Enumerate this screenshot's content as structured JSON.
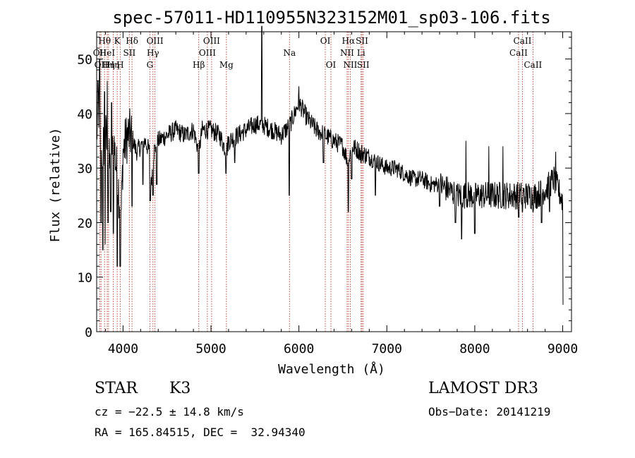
{
  "chart_data": {
    "type": "line",
    "title": "spec-57011-HD110955N323152M01_sp03-106.fits",
    "xlabel": "Wavelength (Å)",
    "ylabel": "Flux (relative)",
    "xlim": [
      3700,
      9100
    ],
    "ylim": [
      0,
      55
    ],
    "xticks": [
      4000,
      5000,
      6000,
      7000,
      8000,
      9000
    ],
    "yticks": [
      0,
      10,
      20,
      30,
      40,
      50
    ],
    "grid": false,
    "series": [
      {
        "name": "spectrum",
        "anchors": [
          [
            3700,
            36
          ],
          [
            3720,
            42
          ],
          [
            3750,
            32
          ],
          [
            3800,
            36
          ],
          [
            3850,
            30
          ],
          [
            3900,
            34
          ],
          [
            3950,
            26
          ],
          [
            3980,
            22
          ],
          [
            4000,
            33
          ],
          [
            4050,
            36
          ],
          [
            4100,
            36
          ],
          [
            4150,
            33
          ],
          [
            4200,
            34
          ],
          [
            4250,
            35
          ],
          [
            4300,
            33
          ],
          [
            4320,
            27
          ],
          [
            4350,
            33
          ],
          [
            4400,
            35
          ],
          [
            4500,
            36
          ],
          [
            4600,
            37
          ],
          [
            4700,
            36
          ],
          [
            4800,
            37
          ],
          [
            4861,
            33
          ],
          [
            4900,
            37
          ],
          [
            5000,
            37
          ],
          [
            5100,
            36
          ],
          [
            5175,
            33
          ],
          [
            5200,
            35
          ],
          [
            5300,
            36
          ],
          [
            5400,
            37
          ],
          [
            5500,
            38
          ],
          [
            5580,
            38
          ],
          [
            5700,
            37
          ],
          [
            5800,
            36
          ],
          [
            5900,
            38
          ],
          [
            6000,
            42
          ],
          [
            6100,
            39
          ],
          [
            6200,
            37
          ],
          [
            6300,
            36
          ],
          [
            6400,
            35
          ],
          [
            6500,
            34
          ],
          [
            6563,
            31
          ],
          [
            6600,
            34
          ],
          [
            6700,
            33
          ],
          [
            6800,
            32
          ],
          [
            6900,
            31
          ],
          [
            7000,
            30
          ],
          [
            7100,
            30
          ],
          [
            7200,
            29
          ],
          [
            7300,
            28
          ],
          [
            7400,
            28
          ],
          [
            7500,
            27
          ],
          [
            7600,
            27
          ],
          [
            7700,
            26
          ],
          [
            7800,
            25
          ],
          [
            7900,
            25
          ],
          [
            8000,
            25
          ],
          [
            8100,
            25
          ],
          [
            8200,
            25
          ],
          [
            8300,
            25
          ],
          [
            8400,
            25
          ],
          [
            8500,
            25
          ],
          [
            8600,
            25
          ],
          [
            8700,
            25
          ],
          [
            8800,
            26
          ],
          [
            8900,
            28
          ],
          [
            8950,
            26
          ],
          [
            9000,
            24
          ]
        ],
        "dips": [
          [
            3750,
            20
          ],
          [
            3770,
            15
          ],
          [
            3795,
            16
          ],
          [
            3830,
            20
          ],
          [
            3860,
            22
          ],
          [
            3890,
            18
          ],
          [
            3933,
            12
          ],
          [
            3968,
            12
          ],
          [
            4102,
            23
          ],
          [
            4226,
            27
          ],
          [
            4308,
            24
          ],
          [
            4340,
            25
          ],
          [
            4384,
            27
          ],
          [
            4860,
            29
          ],
          [
            5170,
            29
          ],
          [
            5270,
            31
          ],
          [
            5890,
            25
          ],
          [
            6280,
            31
          ],
          [
            6563,
            22
          ],
          [
            6600,
            28
          ],
          [
            6707,
            31
          ],
          [
            6870,
            25
          ],
          [
            7600,
            23
          ],
          [
            7780,
            20
          ],
          [
            7850,
            17
          ],
          [
            8000,
            18
          ],
          [
            8500,
            21
          ],
          [
            8542,
            22
          ],
          [
            8662,
            22
          ],
          [
            8760,
            20
          ],
          [
            8850,
            22
          ],
          [
            9005,
            5
          ]
        ],
        "spikes": [
          [
            3715,
            46
          ],
          [
            3735,
            50
          ],
          [
            3790,
            44
          ],
          [
            3820,
            46
          ],
          [
            3870,
            42
          ],
          [
            5578,
            56
          ],
          [
            6000,
            45
          ],
          [
            7900,
            35
          ],
          [
            8160,
            34
          ],
          [
            8320,
            34
          ],
          [
            8920,
            33
          ]
        ]
      }
    ],
    "lines": [
      {
        "x": 3735,
        "label": "OII",
        "row": 2
      },
      {
        "x": 3750,
        "label": "OII",
        "row": 3
      },
      {
        "x": 3790,
        "label": "Hθ",
        "row": 1
      },
      {
        "x": 3820,
        "label": "HeI",
        "row": 2
      },
      {
        "x": 3835,
        "label": "Hη",
        "row": 3
      },
      {
        "x": 3889,
        "label": "Hη",
        "row": 3
      },
      {
        "x": 3934,
        "label": "K",
        "row": 1
      },
      {
        "x": 3968,
        "label": "H",
        "row": 3
      },
      {
        "x": 4072,
        "label": "SII",
        "row": 2
      },
      {
        "x": 4102,
        "label": "Hδ",
        "row": 1
      },
      {
        "x": 4305,
        "label": "G",
        "row": 3
      },
      {
        "x": 4340,
        "label": "Hγ",
        "row": 2
      },
      {
        "x": 4363,
        "label": "OIII",
        "row": 1
      },
      {
        "x": 4861,
        "label": "Hβ",
        "row": 3
      },
      {
        "x": 4959,
        "label": "OIII",
        "row": 2
      },
      {
        "x": 5007,
        "label": "OIII",
        "row": 1
      },
      {
        "x": 5175,
        "label": "Mg",
        "row": 3
      },
      {
        "x": 5893,
        "label": "Na",
        "row": 2
      },
      {
        "x": 6300,
        "label": "OI",
        "row": 1
      },
      {
        "x": 6364,
        "label": "OI",
        "row": 3
      },
      {
        "x": 6548,
        "label": "NII",
        "row": 2
      },
      {
        "x": 6563,
        "label": "Hα",
        "row": 1
      },
      {
        "x": 6584,
        "label": "NII",
        "row": 3
      },
      {
        "x": 6707,
        "label": "Li",
        "row": 2
      },
      {
        "x": 6717,
        "label": "SII",
        "row": 1
      },
      {
        "x": 6731,
        "label": "SII",
        "row": 3
      },
      {
        "x": 8498,
        "label": "CaII",
        "row": 2
      },
      {
        "x": 8542,
        "label": "CaII",
        "row": 1
      },
      {
        "x": 8662,
        "label": "CaII",
        "row": 3
      }
    ]
  },
  "info": {
    "object_class": "STAR",
    "subclass": "K3",
    "survey": "LAMOST DR3",
    "cz": "cz = −22.5 ± 14.8 km/s",
    "obs_date": "Obs−Date: 20141219",
    "radec": "RA = 165.84515, DEC =  32.94340"
  },
  "colors": {
    "line_marker": "#c04a3a",
    "spectrum": "#000000"
  }
}
